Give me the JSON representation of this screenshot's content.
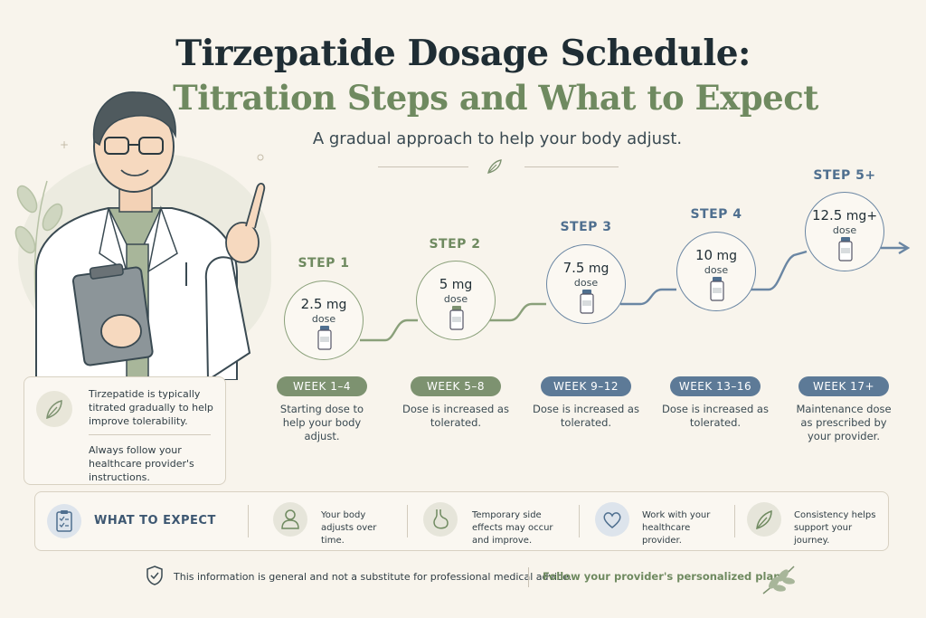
{
  "header": {
    "title_line1": "Tirzepatide Dosage Schedule:",
    "title_line2": "Titration Steps and What to Expect",
    "subtitle": "A gradual approach to help your body adjust."
  },
  "steps": [
    {
      "label": "STEP 1",
      "dose_num": "2.5",
      "dose_unit": " mg",
      "dose_word": "dose",
      "week": "WEEK 1–4",
      "desc": "Starting dose to help your body adjust."
    },
    {
      "label": "STEP 2",
      "dose_num": "5",
      "dose_unit": " mg",
      "dose_word": "dose",
      "week": "WEEK 5–8",
      "desc": "Dose is increased as tolerated."
    },
    {
      "label": "STEP 3",
      "dose_num": "7.5",
      "dose_unit": " mg",
      "dose_word": "dose",
      "week": "WEEK 9–12",
      "desc": "Dose is increased as tolerated."
    },
    {
      "label": "STEP 4",
      "dose_num": "10",
      "dose_unit": " mg",
      "dose_word": "dose",
      "week": "WEEK 13–16",
      "desc": "Dose is increased as tolerated."
    },
    {
      "label": "STEP 5+",
      "dose_num": "12.5",
      "dose_unit": " mg+",
      "dose_word": "dose",
      "week": "WEEK 17+",
      "desc": "Maintenance dose as prescribed by your provider."
    }
  ],
  "info_card": {
    "text1": "Tirzepatide is typically titrated gradually to help improve tolerability.",
    "text2": "Always follow your healthcare provider's instructions."
  },
  "expect": {
    "title": "WHAT TO EXPECT",
    "items": [
      {
        "icon": "person-icon",
        "text": "Your body adjusts over time."
      },
      {
        "icon": "stomach-icon",
        "text": "Temporary side effects may occur and improve."
      },
      {
        "icon": "heart-icon",
        "text": "Work with your healthcare provider."
      },
      {
        "icon": "leaf-icon",
        "text": "Consistency helps support your journey."
      }
    ]
  },
  "footer": {
    "disclaimer": "This information is general and not a substitute for professional medical advice.",
    "cta": "Follow your provider's personalized plan."
  },
  "colors": {
    "background": "#f8f4ec",
    "green_accent": "#6f8a60",
    "blue_accent": "#4f6f8f"
  }
}
